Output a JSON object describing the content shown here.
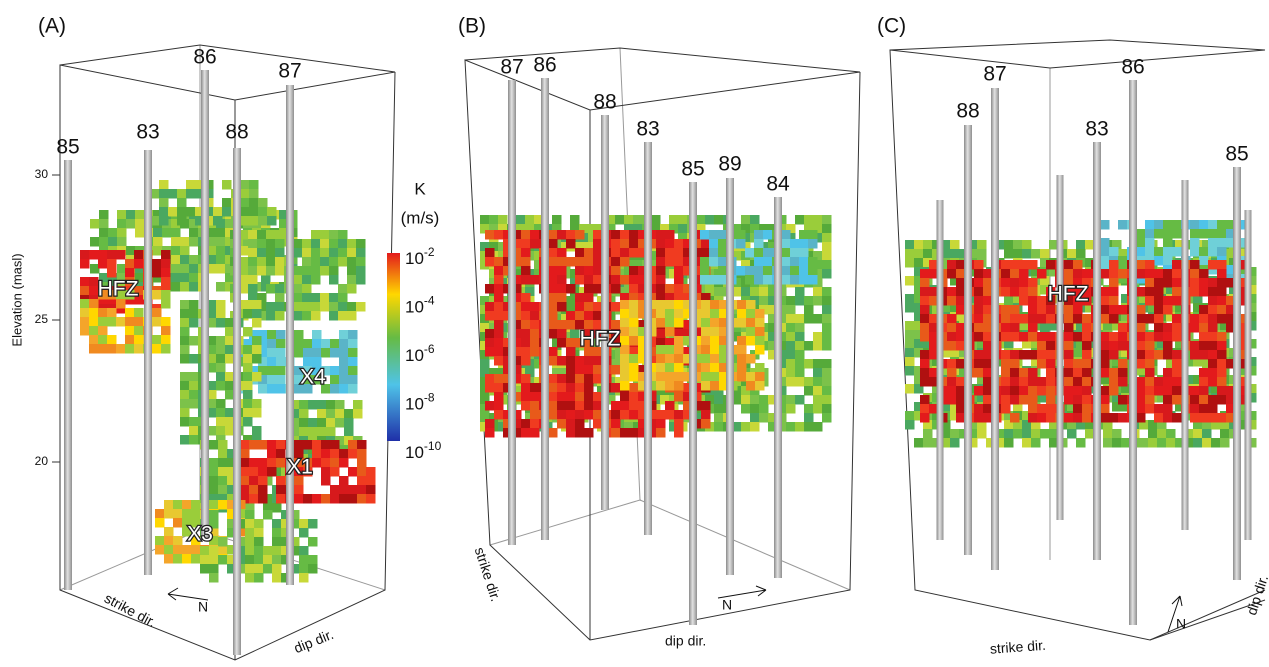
{
  "panels": [
    {
      "label": "(A)",
      "wells": [
        "85",
        "83",
        "86",
        "87",
        "88"
      ],
      "zones": [
        "HFZ",
        "X4",
        "X1",
        "X3"
      ],
      "elevation_axis": {
        "label": "Elevation (masl)",
        "ticks": [
          30,
          25,
          20
        ]
      },
      "colorbar": {
        "title": "K",
        "unit": "(m/s)",
        "ticks": [
          {
            "base": "10",
            "exponent": "-2"
          },
          {
            "base": "10",
            "exponent": "-4"
          },
          {
            "base": "10",
            "exponent": "-6"
          },
          {
            "base": "10",
            "exponent": "-8"
          },
          {
            "base": "10",
            "exponent": "-10"
          }
        ]
      },
      "directions": [
        "strike dir.",
        "dip dir.",
        "N"
      ]
    },
    {
      "label": "(B)",
      "wells": [
        "87",
        "86",
        "88",
        "83",
        "85",
        "89",
        "84"
      ],
      "zones": [
        "HFZ"
      ],
      "directions": [
        "strike dir.",
        "dip dir.",
        "N"
      ]
    },
    {
      "label": "(C)",
      "wells": [
        "88",
        "87",
        "83",
        "86",
        "85"
      ],
      "zones": [
        "HFZ"
      ],
      "directions": [
        "strike dir.",
        "dip dir.",
        "N"
      ]
    }
  ]
}
